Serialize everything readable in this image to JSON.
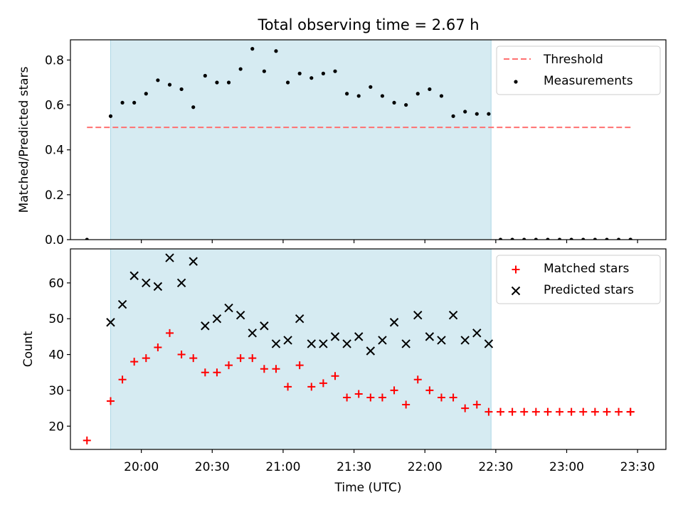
{
  "title": "Total observing time = 2.67 h",
  "colors": {
    "shade": "#add8e6",
    "threshold": "#ff7070",
    "measurements": "#000000",
    "matched": "#ff0000",
    "predicted": "#000000"
  },
  "chart_data": [
    {
      "type": "scatter",
      "panel": "top",
      "xlabel": "",
      "ylabel": "Matched/Predicted stars",
      "ylim": [
        0,
        0.89
      ],
      "yticks": [
        "0.0",
        "0.2",
        "0.4",
        "0.6",
        "0.8"
      ],
      "ytick_values": [
        0,
        0.2,
        0.4,
        0.6,
        0.8
      ],
      "observing_window": [
        "19:47",
        "22:28"
      ],
      "legend": {
        "position": "top-right",
        "entries": [
          "Threshold",
          "Measurements"
        ]
      },
      "threshold": {
        "name": "Threshold",
        "value": 0.5,
        "x": [
          "19:37",
          "23:28"
        ]
      },
      "series": [
        {
          "name": "Measurements",
          "marker": "dot",
          "x": [
            "19:37",
            "19:47",
            "19:52",
            "19:57",
            "20:02",
            "20:07",
            "20:12",
            "20:17",
            "20:22",
            "20:27",
            "20:32",
            "20:37",
            "20:42",
            "20:47",
            "20:52",
            "20:57",
            "21:02",
            "21:07",
            "21:12",
            "21:17",
            "21:22",
            "21:27",
            "21:32",
            "21:37",
            "21:42",
            "21:47",
            "21:52",
            "21:57",
            "22:02",
            "22:07",
            "22:12",
            "22:17",
            "22:22",
            "22:27",
            "22:32",
            "22:37",
            "22:42",
            "22:47",
            "22:52",
            "22:57",
            "23:02",
            "23:07",
            "23:12",
            "23:17",
            "23:22",
            "23:27",
            "23:27"
          ],
          "y": [
            0.0,
            0.55,
            0.61,
            0.61,
            0.65,
            0.71,
            0.69,
            0.67,
            0.59,
            0.73,
            0.7,
            0.7,
            0.76,
            0.85,
            0.75,
            0.84,
            0.7,
            0.74,
            0.72,
            0.74,
            0.75,
            0.65,
            0.64,
            0.68,
            0.64,
            0.61,
            0.6,
            0.65,
            0.67,
            0.64,
            0.55,
            0.57,
            0.56,
            0.56,
            0.0,
            0.0,
            0.0,
            0.0,
            0.0,
            0.0,
            0.0,
            0.0,
            0.0,
            0.0,
            0.0,
            0.0,
            0.0
          ]
        }
      ]
    },
    {
      "type": "scatter",
      "panel": "bottom",
      "xlabel": "Time (UTC)",
      "ylabel": "Count",
      "ylim": [
        13.5,
        69.5
      ],
      "yticks": [
        "20",
        "30",
        "40",
        "50",
        "60"
      ],
      "ytick_values": [
        20,
        30,
        40,
        50,
        60
      ],
      "xlim": [
        "19:30",
        "23:42"
      ],
      "xticks": [
        "20:00",
        "20:30",
        "21:00",
        "21:30",
        "22:00",
        "22:30",
        "23:00",
        "23:30"
      ],
      "observing_window": [
        "19:47",
        "22:28"
      ],
      "legend": {
        "position": "top-right",
        "entries": [
          "Matched stars",
          "Predicted stars"
        ]
      },
      "series": [
        {
          "name": "Matched stars",
          "marker": "plus",
          "x": [
            "19:37",
            "19:47",
            "19:52",
            "19:57",
            "20:02",
            "20:07",
            "20:12",
            "20:17",
            "20:22",
            "20:27",
            "20:32",
            "20:37",
            "20:42",
            "20:47",
            "20:52",
            "20:57",
            "21:02",
            "21:07",
            "21:12",
            "21:17",
            "21:22",
            "21:27",
            "21:32",
            "21:37",
            "21:42",
            "21:47",
            "21:52",
            "21:57",
            "22:02",
            "22:07",
            "22:12",
            "22:17",
            "22:22",
            "22:27",
            "22:32",
            "22:37",
            "22:42",
            "22:47",
            "22:52",
            "22:57",
            "23:02",
            "23:07",
            "23:12",
            "23:17",
            "23:22",
            "23:27",
            "23:27"
          ],
          "y": [
            16,
            27,
            33,
            38,
            39,
            42,
            46,
            40,
            39,
            35,
            35,
            37,
            39,
            39,
            36,
            36,
            31,
            37,
            31,
            32,
            34,
            28,
            29,
            28,
            28,
            30,
            26,
            33,
            30,
            28,
            28,
            25,
            26,
            24,
            24,
            24,
            24,
            24,
            24,
            24,
            24,
            24,
            24,
            24,
            24,
            24,
            24
          ]
        },
        {
          "name": "Predicted stars",
          "marker": "x",
          "x": [
            "19:47",
            "19:52",
            "19:57",
            "20:02",
            "20:07",
            "20:12",
            "20:17",
            "20:22",
            "20:27",
            "20:32",
            "20:37",
            "20:42",
            "20:47",
            "20:52",
            "20:57",
            "21:02",
            "21:07",
            "21:12",
            "21:17",
            "21:22",
            "21:27",
            "21:32",
            "21:37",
            "21:42",
            "21:47",
            "21:52",
            "21:57",
            "22:02",
            "22:07",
            "22:12",
            "22:17",
            "22:22",
            "22:27"
          ],
          "y": [
            49,
            54,
            62,
            60,
            59,
            67,
            60,
            66,
            48,
            50,
            53,
            51,
            46,
            48,
            43,
            44,
            50,
            43,
            43,
            45,
            43,
            45,
            41,
            44,
            49,
            43,
            51,
            45,
            44,
            51,
            44,
            46,
            43
          ]
        }
      ]
    }
  ]
}
